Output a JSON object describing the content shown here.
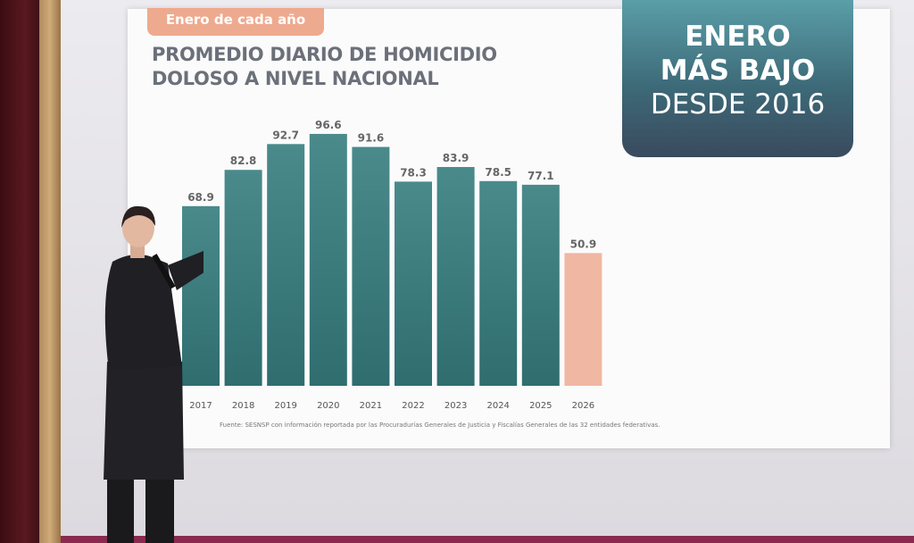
{
  "slide": {
    "tag": "Enero de cada año",
    "title_line1": "PROMEDIO DIARIO DE HOMICIDIO",
    "title_line2": "DOLOSO A NIVEL NACIONAL",
    "callout": [
      "ENERO",
      "MÁS BAJO",
      "DESDE 2016"
    ],
    "source": "Fuente: SESNSP con información reportada por las Procuradurías Generales de Justicia y Fiscalías Generales de las 32 entidades federativas."
  },
  "chart_data": {
    "type": "bar",
    "title": "PROMEDIO DIARIO DE HOMICIDIO DOLOSO A NIVEL NACIONAL",
    "categories": [
      "2017",
      "2018",
      "2019",
      "2020",
      "2021",
      "2022",
      "2023",
      "2024",
      "2025",
      "2026"
    ],
    "values": [
      68.9,
      82.8,
      92.7,
      96.6,
      91.6,
      78.3,
      83.9,
      78.5,
      77.1,
      50.9
    ],
    "ylim": [
      0,
      100
    ],
    "grid": false,
    "colors": {
      "default": "#3f7f80",
      "highlight": "#f0b7a2"
    },
    "highlight_category": "2026"
  }
}
